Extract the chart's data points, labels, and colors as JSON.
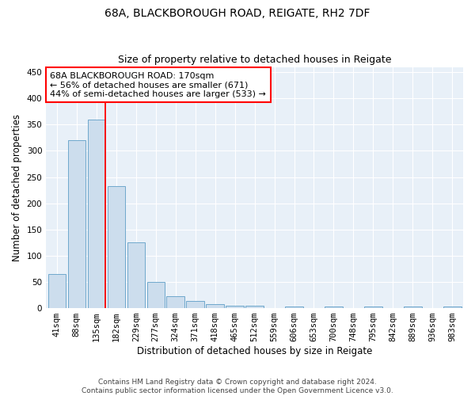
{
  "title1": "68A, BLACKBOROUGH ROAD, REIGATE, RH2 7DF",
  "title2": "Size of property relative to detached houses in Reigate",
  "xlabel": "Distribution of detached houses by size in Reigate",
  "ylabel": "Number of detached properties",
  "bar_values": [
    65,
    320,
    360,
    233,
    125,
    50,
    23,
    13,
    8,
    5,
    4,
    0,
    3,
    0,
    3,
    0,
    3,
    0,
    3,
    0,
    3
  ],
  "bar_labels": [
    "41sqm",
    "88sqm",
    "135sqm",
    "182sqm",
    "229sqm",
    "277sqm",
    "324sqm",
    "371sqm",
    "418sqm",
    "465sqm",
    "512sqm",
    "559sqm",
    "606sqm",
    "653sqm",
    "700sqm",
    "748sqm",
    "795sqm",
    "842sqm",
    "889sqm",
    "936sqm",
    "983sqm"
  ],
  "bar_color_fill": "#ccdded",
  "bar_color_edge": "#6fa8cc",
  "annotation_text": "68A BLACKBOROUGH ROAD: 170sqm\n← 56% of detached houses are smaller (671)\n44% of semi-detached houses are larger (533) →",
  "annotation_box_color": "white",
  "annotation_box_edge": "red",
  "property_line_color": "red",
  "ylim": [
    0,
    460
  ],
  "yticks": [
    0,
    50,
    100,
    150,
    200,
    250,
    300,
    350,
    400,
    450
  ],
  "footer1": "Contains HM Land Registry data © Crown copyright and database right 2024.",
  "footer2": "Contains public sector information licensed under the Open Government Licence v3.0.",
  "background_color": "#ffffff",
  "plot_bg_color": "#e8f0f8",
  "grid_color": "#ffffff",
  "title1_fontsize": 10,
  "title2_fontsize": 9,
  "xlabel_fontsize": 8.5,
  "ylabel_fontsize": 8.5,
  "tick_fontsize": 7.5,
  "footer_fontsize": 6.5,
  "annot_fontsize": 8
}
